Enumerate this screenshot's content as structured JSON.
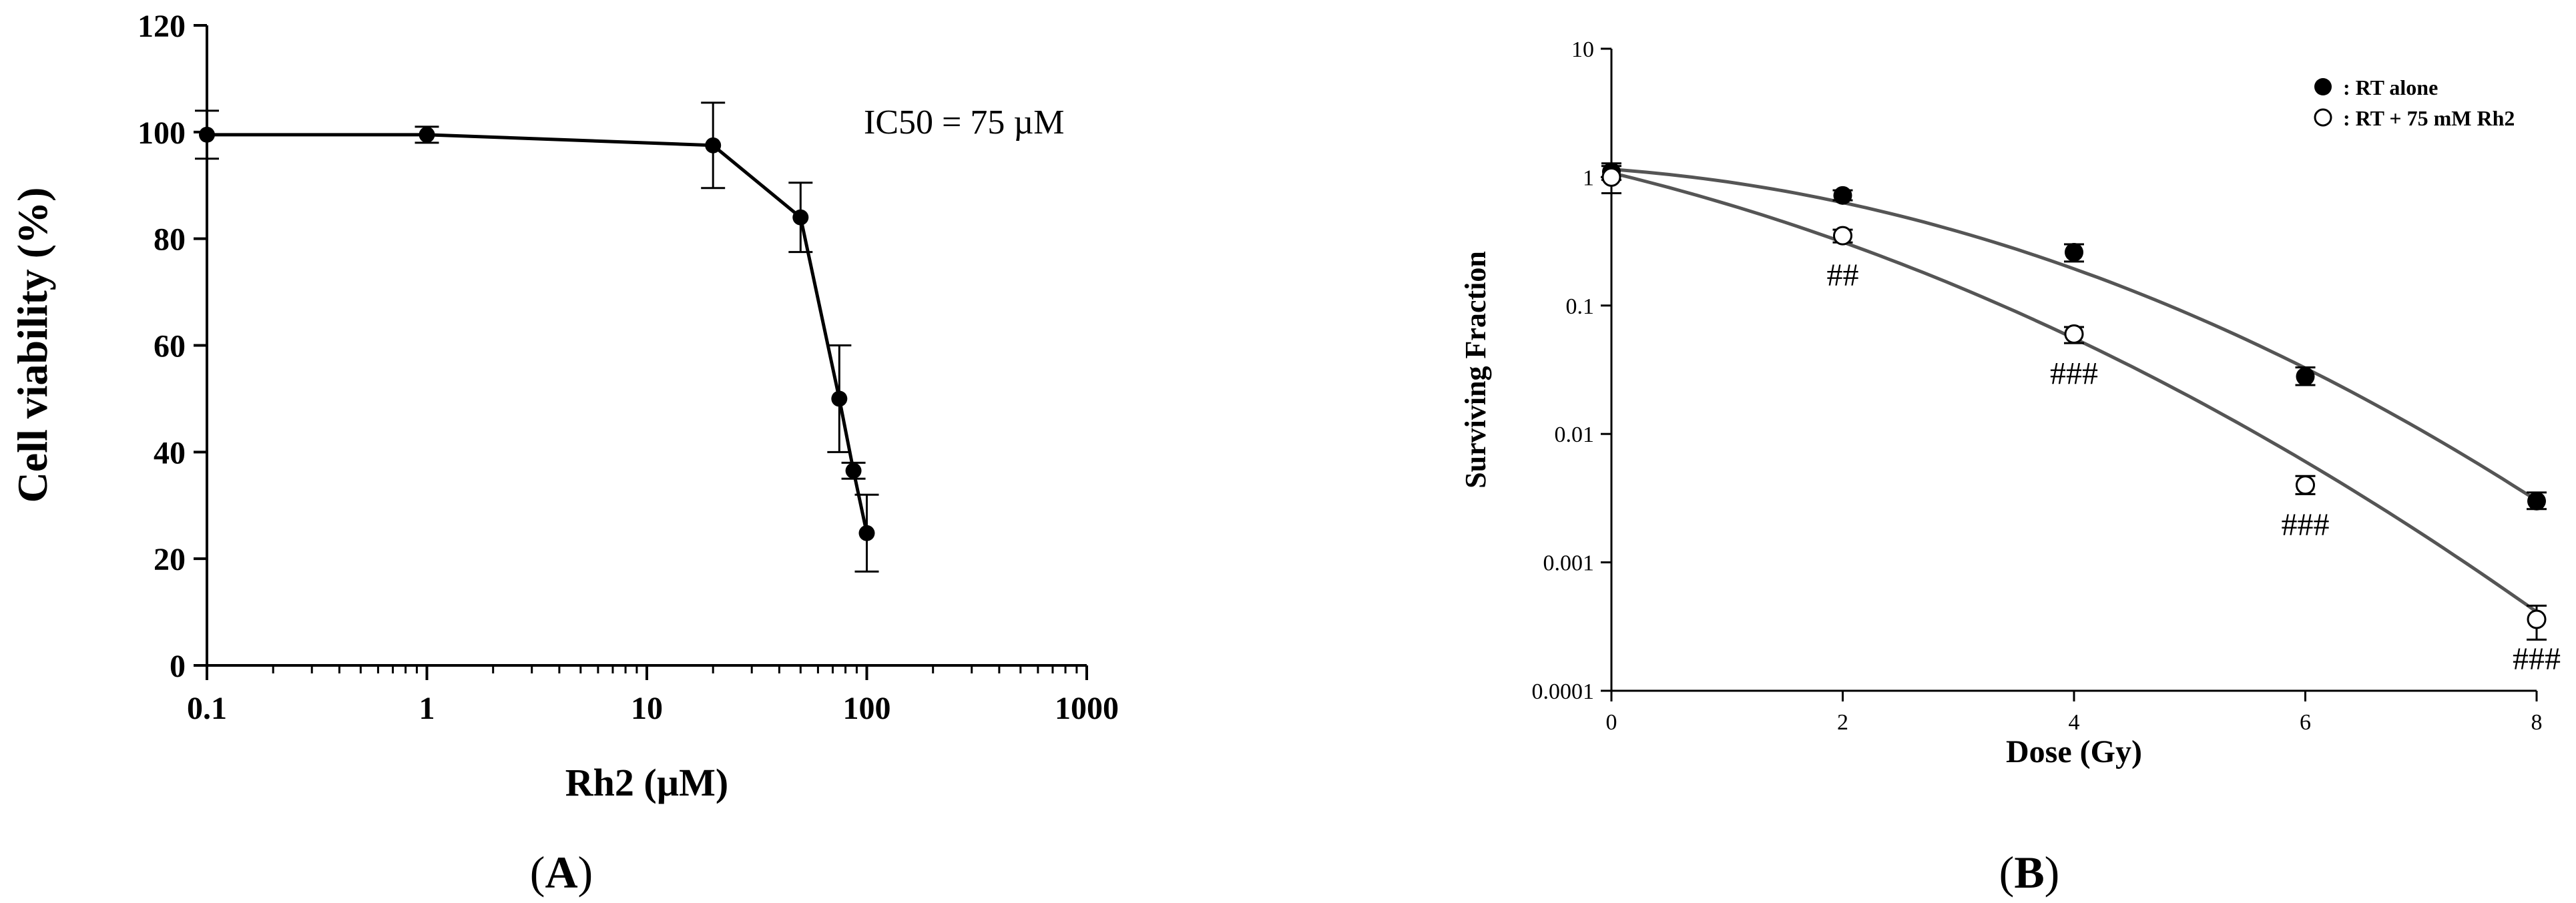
{
  "panels": [
    {
      "label": "A"
    },
    {
      "label": "B"
    }
  ],
  "chart_data": [
    {
      "type": "line",
      "panel": "A",
      "title": "",
      "xlabel": "Rh2 (µM)",
      "ylabel": "Cell viability (%)",
      "xscale": "log",
      "xlim": [
        0.1,
        1000
      ],
      "ylim": [
        0,
        120
      ],
      "xticks": [
        "0.1",
        "1",
        "10",
        "100",
        "1000"
      ],
      "yticks": [
        "0",
        "20",
        "40",
        "60",
        "80",
        "100",
        "120"
      ],
      "annotation": "IC50 = 75 µM",
      "series": [
        {
          "marker": "filled-circle",
          "x": [
            0.1,
            1,
            20,
            50,
            75,
            87,
            100
          ],
          "y": [
            99.5,
            99.5,
            97.5,
            84,
            50,
            36.5,
            24.8
          ],
          "err": [
            4.5,
            1.5,
            8,
            6.5,
            10,
            1.5,
            7.2
          ]
        }
      ],
      "color": "#000000"
    },
    {
      "type": "scatter",
      "panel": "B",
      "title": "",
      "xlabel": "Dose (Gy)",
      "ylabel": "Surviving Fraction",
      "yscale": "log",
      "xlim": [
        0,
        8
      ],
      "ylim": [
        0.0001,
        10
      ],
      "xticks": [
        "0",
        "2",
        "4",
        "6",
        "8"
      ],
      "yticks": [
        "0.0001",
        "0.001",
        "0.01",
        "0.1",
        "1",
        "10"
      ],
      "legend_position": "top-right",
      "series": [
        {
          "name": ": RT alone",
          "marker": "filled-circle",
          "x": [
            0,
            2,
            4,
            6,
            8
          ],
          "y": [
            1.1,
            0.72,
            0.26,
            0.028,
            0.003
          ],
          "err_low": [
            0.95,
            0.66,
            0.22,
            0.024,
            0.0026
          ],
          "err_high": [
            1.28,
            0.79,
            0.3,
            0.033,
            0.0035
          ],
          "fit": {
            "S0": 1.15,
            "alpha": 0.15,
            "beta": 0.074
          }
        },
        {
          "name": ": RT + 75 mM Rh2",
          "marker": "open-circle",
          "x": [
            0,
            2,
            4,
            6,
            8
          ],
          "y": [
            1.0,
            0.35,
            0.06,
            0.004,
            0.00036
          ],
          "err_low": [
            0.75,
            0.31,
            0.051,
            0.0034,
            0.00025
          ],
          "err_high": [
            1.22,
            0.39,
            0.068,
            0.0047,
            0.00046
          ],
          "annotations": [
            "",
            "##",
            "###",
            "###",
            "###"
          ],
          "fit": {
            "S0": 1.08,
            "alpha": 0.5,
            "beta": 0.0605
          }
        }
      ],
      "color": "#555555"
    }
  ]
}
